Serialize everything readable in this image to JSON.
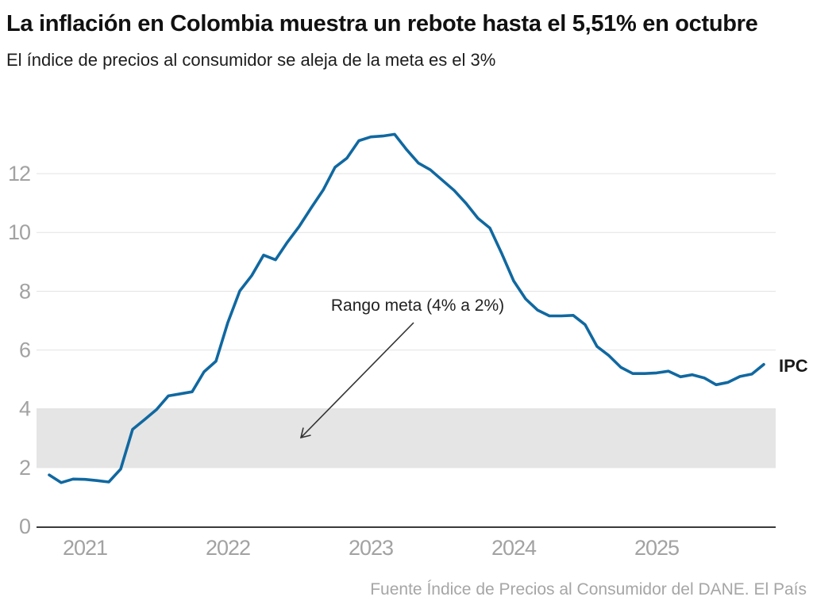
{
  "header": {
    "title": "La inflación en Colombia muestra un rebote hasta el 5,51% en octubre",
    "subtitle": "El índice de precios al consumidor se aleja de la meta es el 3%"
  },
  "footer": {
    "source": "Fuente Índice de Precios al Consumidor del DANE. El País"
  },
  "colors": {
    "line": "#1068a0",
    "band": "#e5e5e5",
    "grid": "#e3e3e3",
    "axis": "#3a3a3a",
    "tick_label": "#a2a2a2",
    "annotation": "#222222",
    "footer": "#a6a6a6"
  },
  "chart_data": {
    "type": "line",
    "title": "La inflación en Colombia muestra un rebote hasta el 5,51% en octubre",
    "subtitle": "El índice de precios al consumidor se aleja de la meta es el 3%",
    "xlabel": "",
    "ylabel": "",
    "x_start": "2020-10",
    "frequency": "monthly",
    "x_tick_labels": [
      "2021",
      "2022",
      "2023",
      "2024",
      "2025"
    ],
    "y_ticks": [
      0,
      2,
      4,
      6,
      8,
      10,
      12
    ],
    "ylim": [
      0,
      13.9
    ],
    "grid": true,
    "band": {
      "from": 2,
      "to": 4,
      "label": "Rango meta (4% a 2%)"
    },
    "series": [
      {
        "name": "IPC",
        "values": [
          1.75,
          1.49,
          1.61,
          1.6,
          1.56,
          1.51,
          1.95,
          3.3,
          3.63,
          3.97,
          4.44,
          4.51,
          4.58,
          5.26,
          5.62,
          6.94,
          8.01,
          8.53,
          9.23,
          9.07,
          9.67,
          10.21,
          10.84,
          11.44,
          12.22,
          12.53,
          13.12,
          13.25,
          13.28,
          13.34,
          12.82,
          12.36,
          12.13,
          11.78,
          11.43,
          10.99,
          10.48,
          10.15,
          9.28,
          8.35,
          7.74,
          7.36,
          7.16,
          7.16,
          7.18,
          6.86,
          6.12,
          5.81,
          5.41,
          5.2,
          5.2,
          5.22,
          5.28,
          5.09,
          5.16,
          5.05,
          4.82,
          4.9,
          5.1,
          5.18,
          5.51
        ]
      }
    ],
    "last_value": "5,51",
    "last_period": "octubre 2025"
  }
}
